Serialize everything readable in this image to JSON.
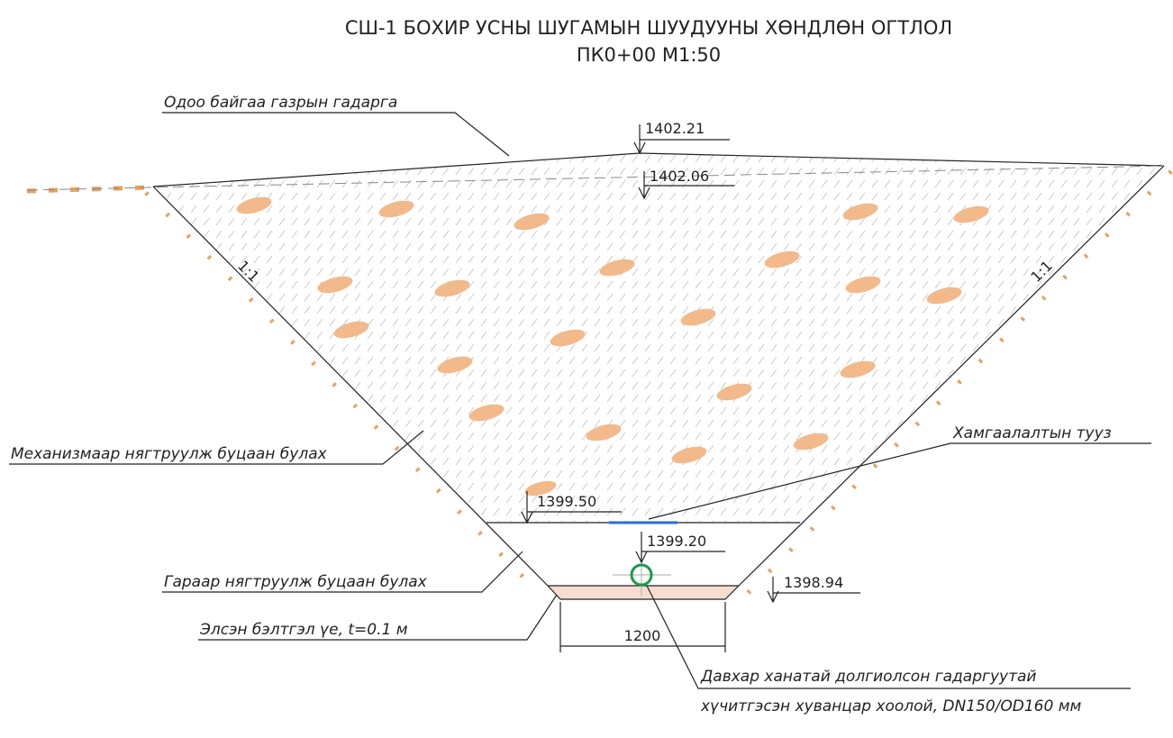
{
  "title": {
    "line1": "СШ-1 БОХИР УСНЫ ШУГАМЫН ШУУДУУНЫ ХӨНДЛӨН ОГТЛОЛ",
    "line2": "ПК0+00 М1:50"
  },
  "labels": {
    "ground": "Одоо байгаа газрын гадарга",
    "machine_backfill": "Механизмаар нягтруулж буцаан булах",
    "tape": "Хамгаалалтын тууз",
    "manual_backfill": "Гараар нягтруулж буцаан булах",
    "sand": "Элсэн бэлтгэл үе, t=0.1 м",
    "pipe_line1": "Давхар ханатай долгиолсон гадаргуутай",
    "pipe_line2": "хүчитгэсэн хуванцар хоолой, DN150/OD160 мм"
  },
  "elevations": {
    "ground_top": "1402.21",
    "surface": "1402.06",
    "manual_top": "1399.50",
    "pipe_top": "1399.20",
    "bottom": "1398.94"
  },
  "slopes": {
    "left": "1:1",
    "right": "1:1"
  },
  "dimension": {
    "width": "1200"
  }
}
